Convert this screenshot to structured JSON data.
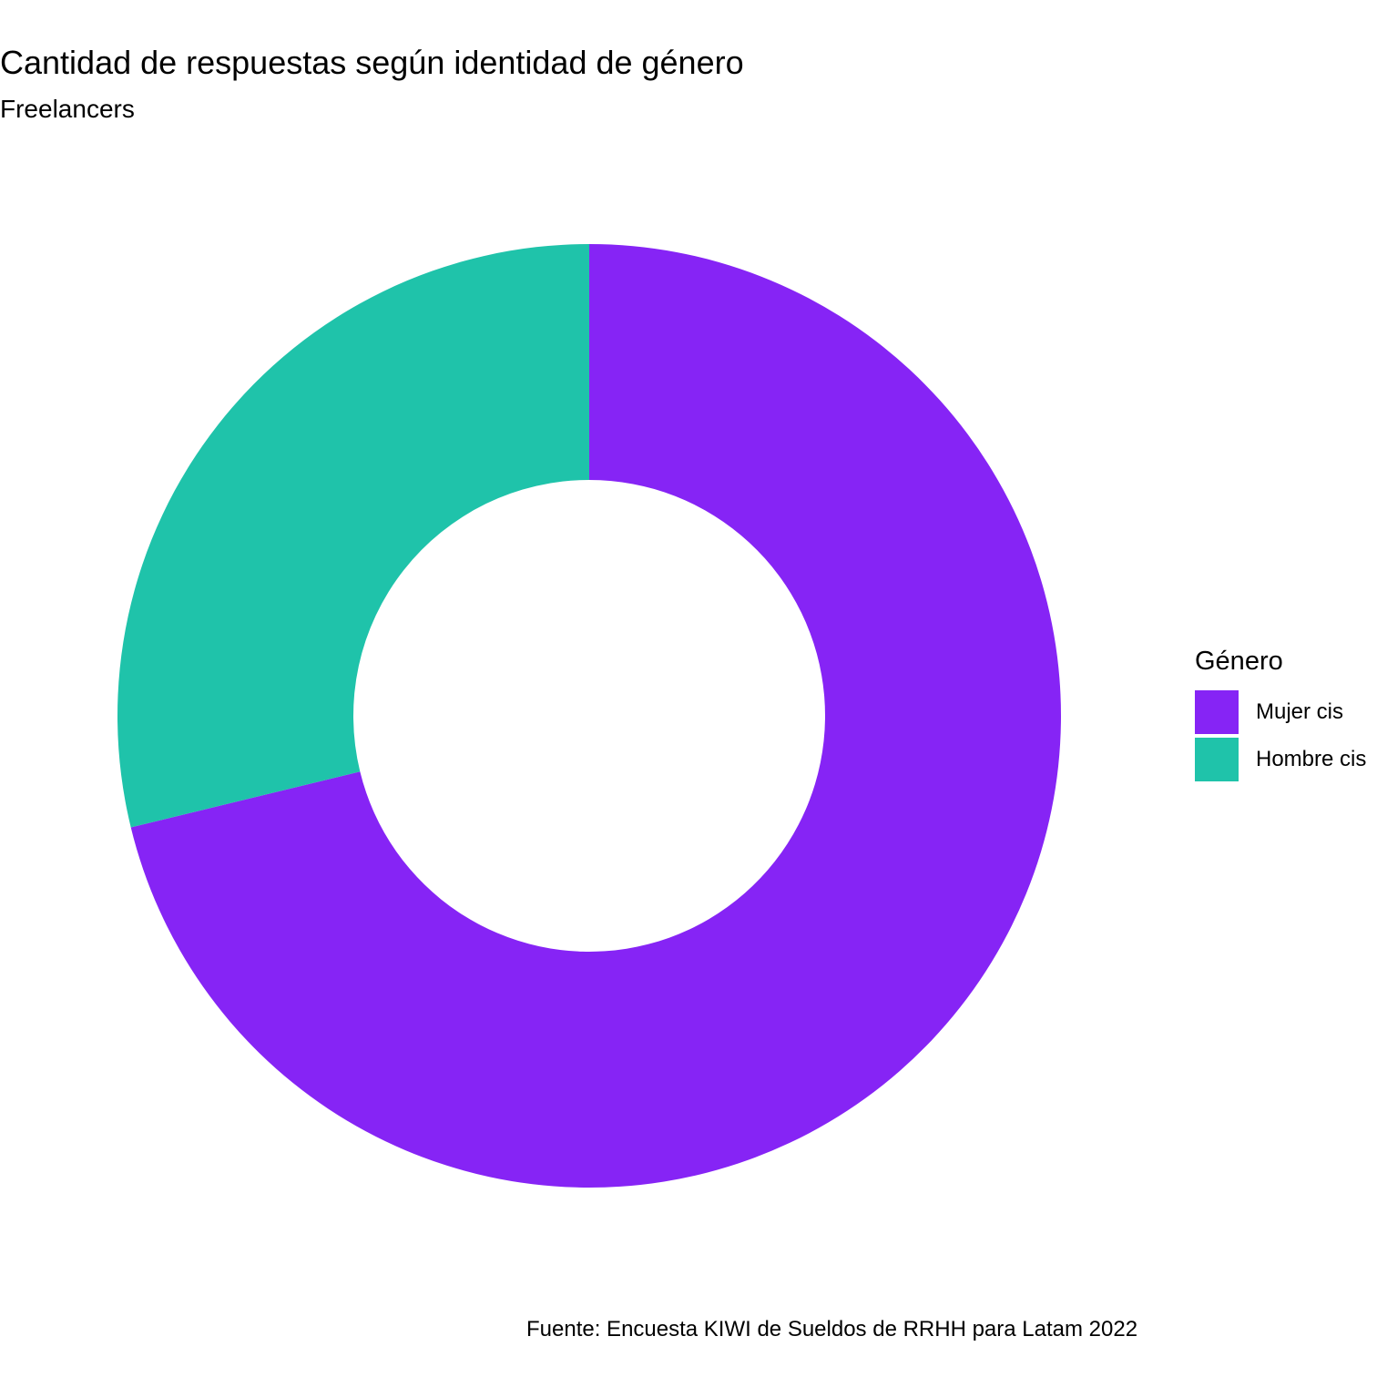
{
  "chart_data": {
    "type": "pie",
    "variant": "donut",
    "title": "Cantidad de respuestas según identidad de género",
    "subtitle": "Freelancers",
    "caption": "Fuente: Encuesta KIWI de Sueldos de RRHH para Latam 2022",
    "legend": {
      "title": "Género",
      "placement": "right"
    },
    "categories": [
      "Mujer cis",
      "Hombre cis"
    ],
    "values": [
      71.2,
      28.8
    ],
    "unit": "percent (estimated share)",
    "colors": [
      "#8624F5",
      "#1FC3AA"
    ]
  }
}
